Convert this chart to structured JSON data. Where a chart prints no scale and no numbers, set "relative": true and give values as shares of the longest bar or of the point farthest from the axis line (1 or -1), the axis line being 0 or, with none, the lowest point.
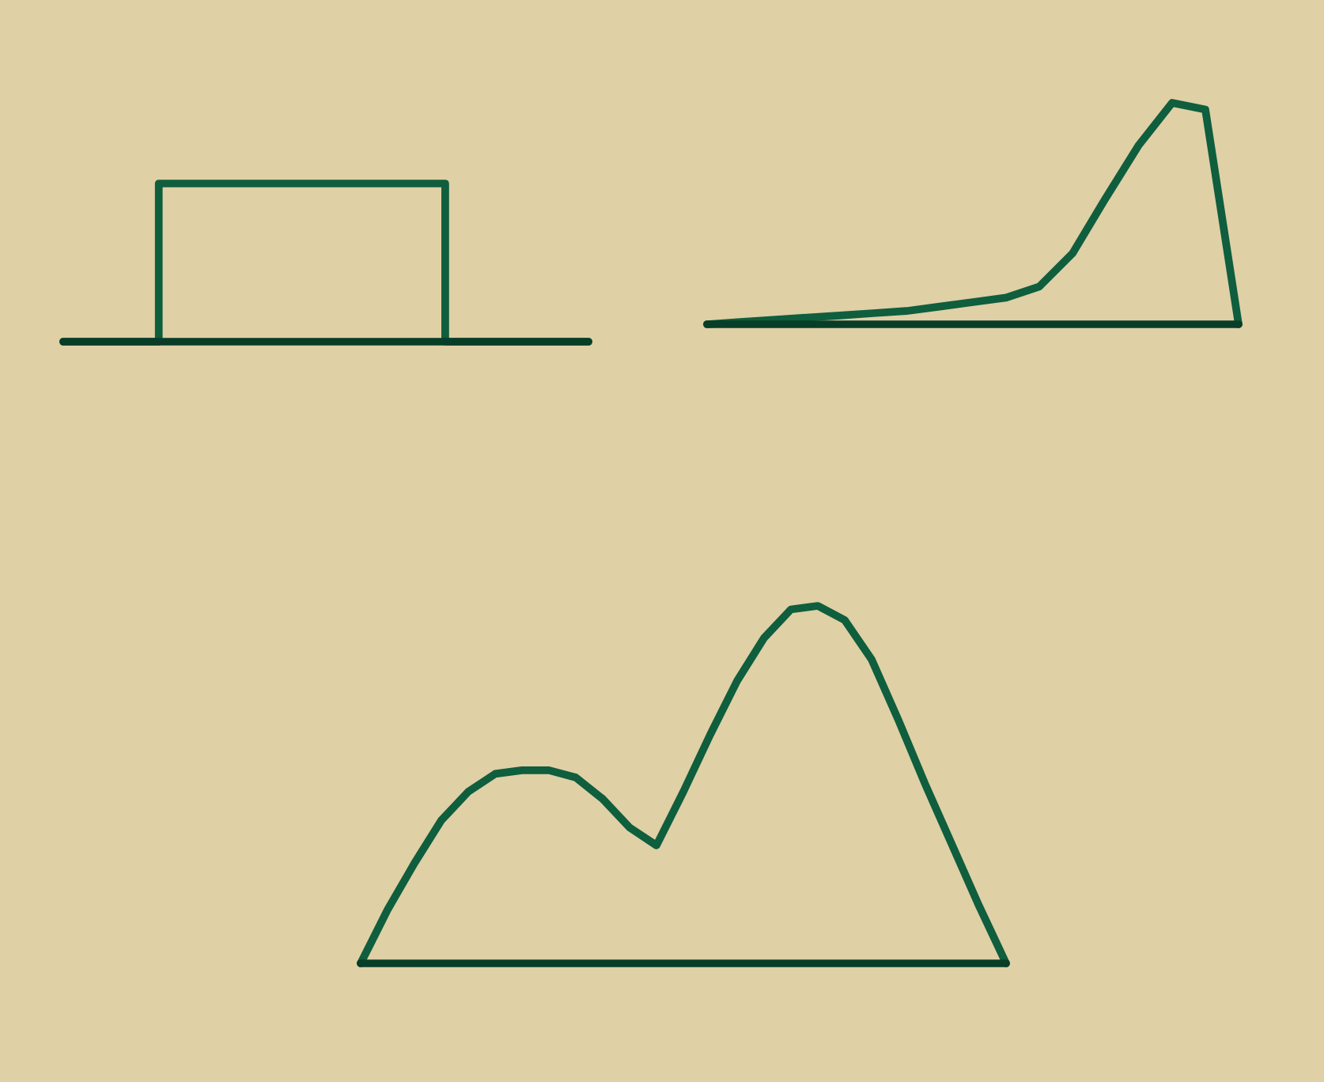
{
  "chart_data": [
    {
      "type": "step",
      "relative": true,
      "color": "#0f5e3e",
      "categories": [
        null,
        null,
        null,
        null,
        null,
        null,
        null,
        null,
        null,
        null,
        null,
        null
      ],
      "values": [
        0,
        0,
        1,
        1,
        1,
        1,
        1,
        1,
        0,
        0,
        0,
        0
      ]
    },
    {
      "type": "line",
      "relative": true,
      "color": "#0f5e3e",
      "categories": [
        null,
        null,
        null,
        null,
        null,
        null,
        null,
        null,
        null,
        null,
        null,
        null,
        null,
        null,
        null,
        null,
        null
      ],
      "values": [
        0,
        0.01,
        0.02,
        0.03,
        0.04,
        0.05,
        0.06,
        0.08,
        0.1,
        0.12,
        0.17,
        0.32,
        0.57,
        0.81,
        1,
        0.97,
        0
      ]
    },
    {
      "type": "line",
      "relative": true,
      "color": "#0f5e3e",
      "categories": [
        null,
        null,
        null,
        null,
        null,
        null,
        null,
        null,
        null,
        null,
        null,
        null,
        null,
        null,
        null,
        null,
        null,
        null,
        null,
        null,
        null,
        null,
        null,
        null,
        null
      ],
      "values": [
        0,
        0.15,
        0.28,
        0.4,
        0.48,
        0.53,
        0.54,
        0.54,
        0.52,
        0.46,
        0.38,
        0.33,
        0.48,
        0.64,
        0.79,
        0.91,
        0.99,
        1,
        0.96,
        0.85,
        0.68,
        0.5,
        0.33,
        0.16,
        0
      ]
    }
  ]
}
